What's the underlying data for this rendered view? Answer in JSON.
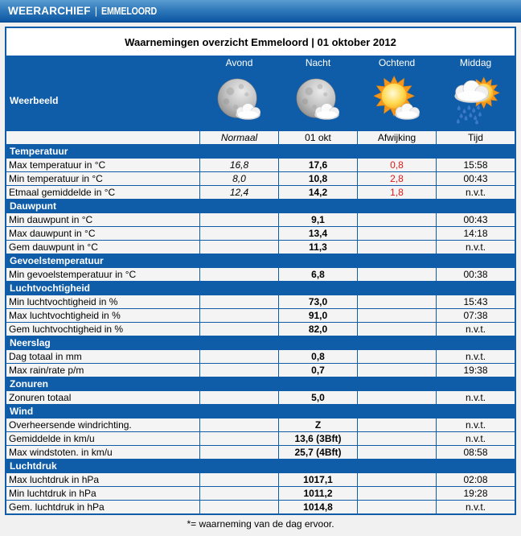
{
  "topbar": {
    "brand": "WEERARCHIEF",
    "divider": "|",
    "location": "EMMELOORD"
  },
  "table_title": "Waarnemingen overzicht Emmeloord | 01 oktober 2012",
  "weerbeeld": {
    "label": "Weerbeeld",
    "periods": [
      {
        "label": "Avond",
        "icon": "moon-cloud-icon"
      },
      {
        "label": "Nacht",
        "icon": "moon-cloud-icon"
      },
      {
        "label": "Ochtend",
        "icon": "sun-cloud-icon"
      },
      {
        "label": "Middag",
        "icon": "rain-sun-cloud-icon"
      }
    ]
  },
  "column_headers": {
    "normaal": "Normaal",
    "day": "01 okt",
    "afwijking": "Afwijking",
    "tijd": "Tijd"
  },
  "sections": [
    {
      "title": "Temperatuur",
      "rows": [
        {
          "label": "Max temperatuur in °C",
          "normaal": "16,8",
          "value": "17,6",
          "afwijking": "0,8",
          "tijd": "15:58"
        },
        {
          "label": "Min temperatuur in °C",
          "normaal": "8,0",
          "value": "10,8",
          "afwijking": "2,8",
          "tijd": "00:43"
        },
        {
          "label": "Etmaal gemiddelde in °C",
          "normaal": "12,4",
          "value": "14,2",
          "afwijking": "1,8",
          "tijd": "n.v.t."
        }
      ]
    },
    {
      "title": "Dauwpunt",
      "rows": [
        {
          "label": "Min dauwpunt in °C",
          "value": "9,1",
          "tijd": "00:43"
        },
        {
          "label": "Max dauwpunt in °C",
          "value": "13,4",
          "tijd": "14:18"
        },
        {
          "label": "Gem dauwpunt in °C",
          "value": "11,3",
          "tijd": "n.v.t."
        }
      ]
    },
    {
      "title": "Gevoelstemperatuur",
      "rows": [
        {
          "label": "Min gevoelstemperatuur in °C",
          "value": "6,8",
          "tijd": "00:38"
        }
      ]
    },
    {
      "title": "Luchtvochtigheid",
      "rows": [
        {
          "label": "Min luchtvochtigheid in %",
          "value": "73,0",
          "tijd": "15:43"
        },
        {
          "label": "Max luchtvochtigheid in %",
          "value": "91,0",
          "tijd": "07:38"
        },
        {
          "label": "Gem luchtvochtigheid in %",
          "value": "82,0",
          "tijd": "n.v.t."
        }
      ]
    },
    {
      "title": "Neerslag",
      "rows": [
        {
          "label": "Dag totaal in mm",
          "value": "0,8",
          "tijd": "n.v.t."
        },
        {
          "label": "Max rain/rate p/m",
          "value": "0,7",
          "tijd": "19:38"
        }
      ]
    },
    {
      "title": "Zonuren",
      "rows": [
        {
          "label": "Zonuren totaal",
          "value": "5,0",
          "tijd": "n.v.t."
        }
      ]
    },
    {
      "title": "Wind",
      "rows": [
        {
          "label": "Overheersende windrichting.",
          "value": "Z",
          "tijd": "n.v.t."
        },
        {
          "label": "Gemiddelde in km/u",
          "value": "13,6 (3Bft)",
          "tijd": "n.v.t."
        },
        {
          "label": "Max windstoten. in km/u",
          "value": "25,7 (4Bft)",
          "tijd": "08:58"
        }
      ]
    },
    {
      "title": "Luchtdruk",
      "rows": [
        {
          "label": "Max luchtdruk in hPa",
          "value": "1017,1",
          "tijd": "02:08"
        },
        {
          "label": "Min luchtdruk in hPa",
          "value": "1011,2",
          "tijd": "19:28"
        },
        {
          "label": "Gem. luchtdruk in hPa",
          "value": "1014,8",
          "tijd": "n.v.t."
        }
      ]
    }
  ],
  "footnote": "*= waarneming van de dag ervoor.",
  "colors": {
    "accent_blue": "#0f5ca8",
    "cell_bg": "#f4f4f4",
    "deviation_red": "#e01818",
    "topbar_gradient_top": "#5b9cd1",
    "topbar_gradient_bottom": "#0d56a2"
  }
}
